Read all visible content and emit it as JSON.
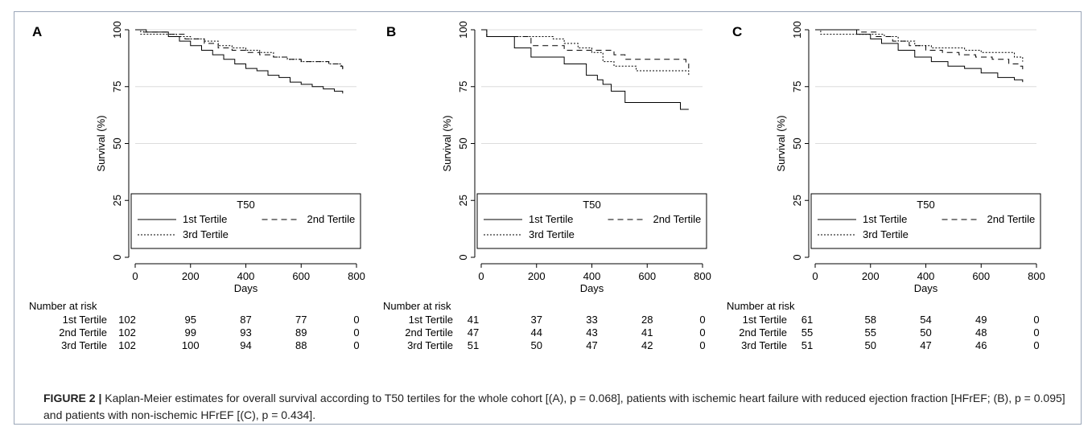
{
  "chart_data": [
    {
      "type": "line",
      "panel": "A",
      "xlabel": "Days",
      "ylabel": "Survival (%)",
      "xlim": [
        0,
        800
      ],
      "ylim": [
        0,
        100
      ],
      "x_ticks": [
        0,
        200,
        400,
        600,
        800
      ],
      "y_ticks": [
        0,
        25,
        50,
        75,
        100
      ],
      "grid": "horizontal",
      "legend": {
        "title": "T50",
        "placement": "bottom-inside",
        "entries": [
          "1st Tertile",
          "2nd Tertile",
          "3rd Tertile"
        ]
      },
      "series": [
        {
          "name": "1st Tertile",
          "style": "solid",
          "x": [
            0,
            40,
            120,
            160,
            200,
            240,
            280,
            320,
            360,
            400,
            440,
            480,
            520,
            560,
            600,
            640,
            680,
            720,
            750
          ],
          "y": [
            100,
            99,
            97,
            95,
            93,
            91,
            89,
            87,
            85,
            83,
            82,
            80,
            79,
            77,
            76,
            75,
            74,
            73,
            72
          ]
        },
        {
          "name": "2nd Tertile",
          "style": "dashed",
          "x": [
            0,
            30,
            120,
            180,
            250,
            300,
            350,
            400,
            450,
            500,
            550,
            600,
            650,
            700,
            740,
            750
          ],
          "y": [
            100,
            99,
            98,
            96,
            94,
            92,
            91,
            90,
            89,
            88,
            87,
            86,
            86,
            85,
            84,
            82
          ]
        },
        {
          "name": "3rd Tertile",
          "style": "dotted",
          "x": [
            0,
            20,
            100,
            150,
            200,
            250,
            300,
            350,
            400,
            450,
            500,
            550,
            600,
            650,
            700,
            745,
            750
          ],
          "y": [
            100,
            98,
            98,
            97,
            96,
            95,
            93,
            92,
            91,
            90,
            88,
            87,
            86,
            86,
            85,
            84,
            83
          ]
        }
      ],
      "risk_table": {
        "title": "Number at risk",
        "rows": [
          {
            "label": "1st Tertile",
            "values": [
              102,
              95,
              87,
              77,
              0
            ]
          },
          {
            "label": "2nd Tertile",
            "values": [
              102,
              99,
              93,
              89,
              0
            ]
          },
          {
            "label": "3rd Tertile",
            "values": [
              102,
              100,
              94,
              88,
              0
            ]
          }
        ]
      }
    },
    {
      "type": "line",
      "panel": "B",
      "xlabel": "Days",
      "ylabel": "Survival (%)",
      "xlim": [
        0,
        800
      ],
      "ylim": [
        0,
        100
      ],
      "x_ticks": [
        0,
        200,
        400,
        600,
        800
      ],
      "y_ticks": [
        0,
        25,
        50,
        75,
        100
      ],
      "grid": "horizontal",
      "legend": {
        "title": "T50",
        "placement": "bottom-inside",
        "entries": [
          "1st Tertile",
          "2nd Tertile",
          "3rd Tertile"
        ]
      },
      "series": [
        {
          "name": "1st Tertile",
          "style": "solid",
          "x": [
            0,
            20,
            120,
            180,
            300,
            380,
            420,
            440,
            470,
            520,
            720,
            750
          ],
          "y": [
            100,
            97,
            92,
            88,
            85,
            80,
            78,
            76,
            73,
            68,
            65,
            65
          ]
        },
        {
          "name": "2nd Tertile",
          "style": "dashed",
          "x": [
            0,
            20,
            120,
            180,
            300,
            360,
            420,
            480,
            520,
            550,
            740,
            750
          ],
          "y": [
            100,
            97,
            97,
            93,
            91,
            91,
            91,
            89,
            87,
            87,
            85,
            83
          ]
        },
        {
          "name": "3rd Tertile",
          "style": "dotted",
          "x": [
            0,
            20,
            180,
            260,
            300,
            350,
            400,
            440,
            480,
            520,
            560,
            740,
            750
          ],
          "y": [
            100,
            97,
            97,
            96,
            94,
            92,
            90,
            86,
            84,
            84,
            82,
            82,
            80
          ]
        }
      ],
      "risk_table": {
        "title": "Number at risk",
        "rows": [
          {
            "label": "1st Tertile",
            "values": [
              41,
              37,
              33,
              28,
              0
            ]
          },
          {
            "label": "2nd Tertile",
            "values": [
              47,
              44,
              43,
              41,
              0
            ]
          },
          {
            "label": "3rd Tertile",
            "values": [
              51,
              50,
              47,
              42,
              0
            ]
          }
        ]
      }
    },
    {
      "type": "line",
      "panel": "C",
      "xlabel": "Days",
      "ylabel": "Survival (%)",
      "xlim": [
        0,
        800
      ],
      "ylim": [
        0,
        100
      ],
      "x_ticks": [
        0,
        200,
        400,
        600,
        800
      ],
      "y_ticks": [
        0,
        25,
        50,
        75,
        100
      ],
      "grid": "horizontal",
      "legend": {
        "title": "T50",
        "placement": "bottom-inside",
        "entries": [
          "1st Tertile",
          "2nd Tertile",
          "3rd Tertile"
        ]
      },
      "series": [
        {
          "name": "1st Tertile",
          "style": "solid",
          "x": [
            0,
            150,
            200,
            240,
            300,
            360,
            420,
            480,
            540,
            600,
            660,
            720,
            750
          ],
          "y": [
            100,
            98,
            96,
            94,
            91,
            88,
            86,
            84,
            83,
            81,
            79,
            78,
            77
          ]
        },
        {
          "name": "2nd Tertile",
          "style": "dashed",
          "x": [
            0,
            160,
            220,
            280,
            340,
            400,
            460,
            520,
            580,
            640,
            700,
            740,
            750
          ],
          "y": [
            100,
            99,
            97,
            95,
            93,
            91,
            90,
            89,
            88,
            87,
            85,
            84,
            82
          ]
        },
        {
          "name": "3rd Tertile",
          "style": "dotted",
          "x": [
            0,
            20,
            130,
            190,
            250,
            300,
            360,
            420,
            480,
            540,
            600,
            660,
            720,
            750
          ],
          "y": [
            100,
            98,
            98,
            98,
            97,
            95,
            93,
            92,
            92,
            91,
            90,
            90,
            88,
            86
          ]
        }
      ],
      "risk_table": {
        "title": "Number at risk",
        "rows": [
          {
            "label": "1st Tertile",
            "values": [
              61,
              58,
              54,
              49,
              0
            ]
          },
          {
            "label": "2nd Tertile",
            "values": [
              55,
              55,
              50,
              48,
              0
            ]
          },
          {
            "label": "3rd Tertile",
            "values": [
              51,
              50,
              47,
              46,
              0
            ]
          }
        ]
      }
    }
  ],
  "caption": {
    "lead": "FIGURE 2 |",
    "text": "Kaplan-Meier estimates for overall survival according to T50 tertiles for the whole cohort [(A), p = 0.068], patients with ischemic heart failure with reduced ejection fraction [HFrEF; (B), p = 0.095] and patients with non-ischemic HFrEF [(C), p = 0.434]."
  },
  "colors": {
    "line": "#000000",
    "grid": "#dcdcdc",
    "frame": "#9aa6b8"
  }
}
